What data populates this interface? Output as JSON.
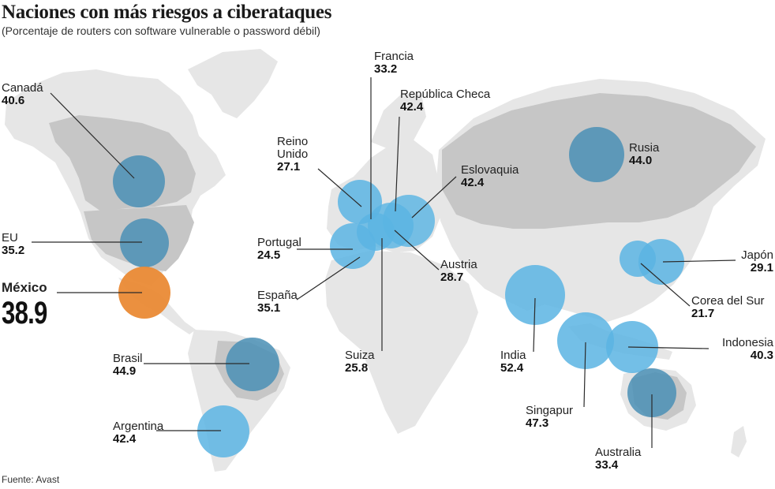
{
  "title": "Naciones con más riesgos a ciberataques",
  "subtitle": "(Porcentaje de routers con software vulnerable o password débil)",
  "source": "Fuente: Avast",
  "colors": {
    "land_light": "#e6e6e6",
    "land_dark": "#c6c6c6",
    "bubble_light": "#5ab4e3",
    "bubble_dark": "#4a8fb5",
    "highlight": "#ea8a35",
    "leader": "#2b2b2b"
  },
  "countries": [
    {
      "name": "Canadá",
      "value": "40.6",
      "shade": "dark"
    },
    {
      "name": "EU",
      "value": "35.2",
      "shade": "dark"
    },
    {
      "name": "México",
      "value": "38.9",
      "shade": "highlight"
    },
    {
      "name": "Brasil",
      "value": "44.9",
      "shade": "dark"
    },
    {
      "name": "Argentina",
      "value": "42.4",
      "shade": "light"
    },
    {
      "name": "Francia",
      "value": "33.2",
      "shade": "light"
    },
    {
      "name": "República Checa",
      "value": "42.4",
      "shade": "light"
    },
    {
      "name": "Reino Unido",
      "value": "27.1",
      "shade": "light"
    },
    {
      "name": "Eslovaquia",
      "value": "42.4",
      "shade": "light"
    },
    {
      "name": "Portugal",
      "value": "24.5",
      "shade": "light"
    },
    {
      "name": "Austria",
      "value": "28.7",
      "shade": "light"
    },
    {
      "name": "España",
      "value": "35.1",
      "shade": "light"
    },
    {
      "name": "Suiza",
      "value": "25.8",
      "shade": "light"
    },
    {
      "name": "Rusia",
      "value": "44.0",
      "shade": "dark"
    },
    {
      "name": "Japón",
      "value": "29.1",
      "shade": "light"
    },
    {
      "name": "Corea del Sur",
      "value": "21.7",
      "shade": "light"
    },
    {
      "name": "India",
      "value": "52.4",
      "shade": "light"
    },
    {
      "name": "Indonesia",
      "value": "40.3",
      "shade": "light"
    },
    {
      "name": "Singapur",
      "value": "47.3",
      "shade": "light"
    },
    {
      "name": "Australia",
      "value": "33.4",
      "shade": "dark"
    }
  ]
}
